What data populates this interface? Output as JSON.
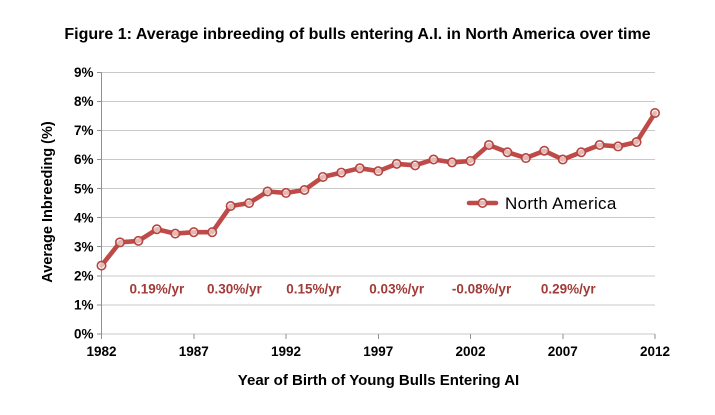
{
  "figure": {
    "title": "Figure 1: Average inbreeding of bulls entering A.I. in North America over time"
  },
  "chart_data": {
    "type": "line",
    "title": "Figure 1: Average inbreeding of bulls entering A.I. in North America over time",
    "xlabel": "Year of Birth of Young Bulls Entering AI",
    "ylabel": "Average Inbreeding (%)",
    "x": [
      1982,
      1983,
      1984,
      1985,
      1986,
      1987,
      1988,
      1989,
      1990,
      1991,
      1992,
      1993,
      1994,
      1995,
      1996,
      1997,
      1998,
      1999,
      2000,
      2001,
      2002,
      2003,
      2004,
      2005,
      2006,
      2007,
      2008,
      2009,
      2010,
      2011,
      2012
    ],
    "series": [
      {
        "name": "North America",
        "values": [
          2.35,
          3.15,
          3.2,
          3.6,
          3.45,
          3.5,
          3.5,
          4.4,
          4.5,
          4.9,
          4.85,
          4.95,
          5.4,
          5.55,
          5.7,
          5.6,
          5.85,
          5.8,
          6.0,
          5.9,
          5.95,
          6.5,
          6.25,
          6.05,
          6.3,
          6.0,
          6.25,
          6.5,
          6.45,
          6.6,
          7.6
        ]
      }
    ],
    "ylim": [
      0,
      9
    ],
    "yticks": [
      "0%",
      "1%",
      "2%",
      "3%",
      "4%",
      "5%",
      "6%",
      "7%",
      "8%",
      "9%"
    ],
    "xticks": [
      "1982",
      "1987",
      "1992",
      "1997",
      "2002",
      "2007",
      "2012"
    ],
    "xtick_years": [
      1982,
      1987,
      1992,
      1997,
      2002,
      2007,
      2012
    ],
    "grid": true,
    "legend_position": "inside-plot-right",
    "annotations": [
      {
        "label": "0.19%/yr",
        "x": 1985.0
      },
      {
        "label": "0.30%/yr",
        "x": 1989.2
      },
      {
        "label": "0.15%/yr",
        "x": 1993.5
      },
      {
        "label": "0.03%/yr",
        "x": 1998.0
      },
      {
        "label": "-0.08%/yr",
        "x": 2002.6
      },
      {
        "label": "0.29%/yr",
        "x": 2007.3
      }
    ],
    "annotation_y": 1.55,
    "colors": {
      "series": "#be4b48",
      "marker_stroke": "#b5453f",
      "annotation": "#a13b37",
      "grid": "#c9c9c9",
      "axis": "#8f8f8f",
      "text": "#000000"
    }
  }
}
